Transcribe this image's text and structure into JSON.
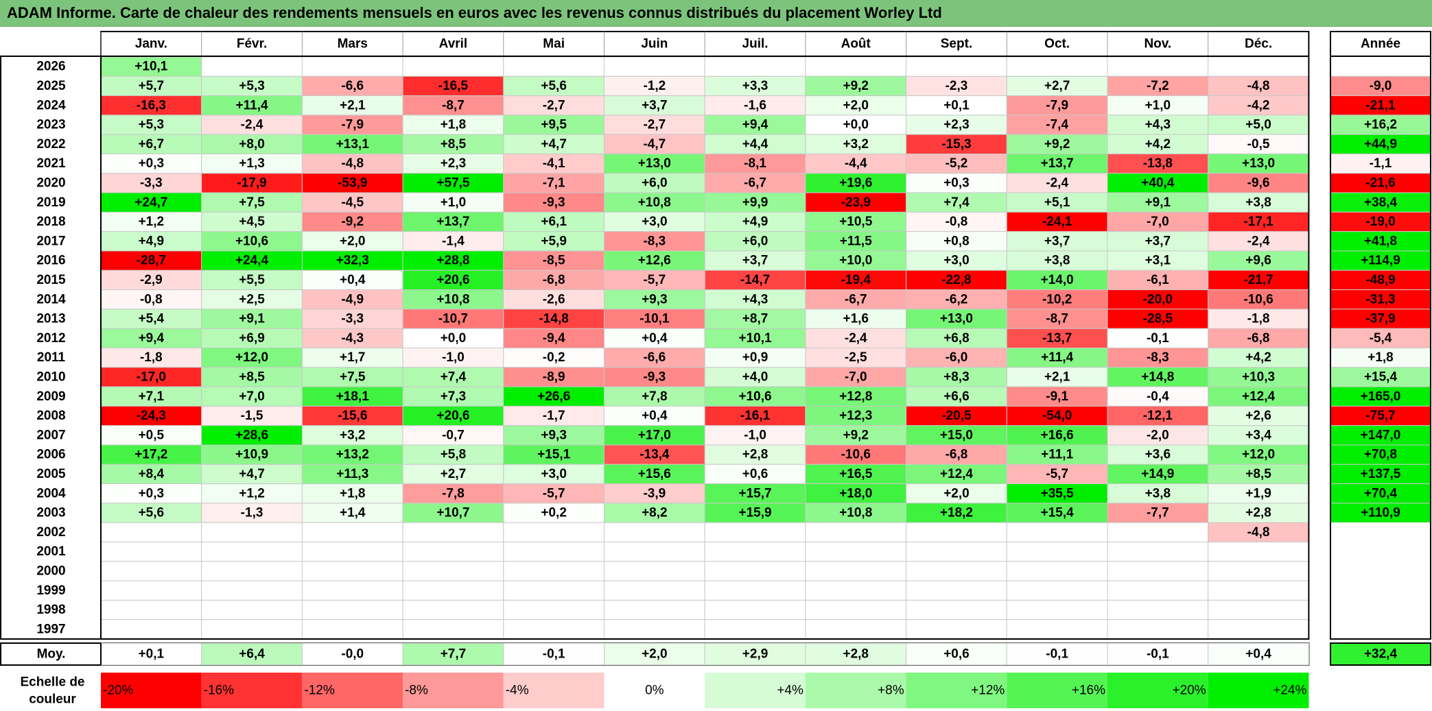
{
  "title": "ADAM Informe. Carte de chaleur des rendements mensuels en euros avec les revenus connus distribués du placement Worley Ltd",
  "chart_data": {
    "type": "heatmap",
    "title": "ADAM Informe. Carte de chaleur des rendements mensuels en euros avec les revenus connus distribués du placement Worley Ltd",
    "months": [
      "Janv.",
      "Févr.",
      "Mars",
      "Avril",
      "Mai",
      "Juin",
      "Juil.",
      "Août",
      "Sept.",
      "Oct.",
      "Nov.",
      "Déc."
    ],
    "year_header": "Année",
    "rows": [
      {
        "year": "2026",
        "months": [
          "+10,1",
          "",
          "",
          "",
          "",
          "",
          "",
          "",
          "",
          "",
          "",
          ""
        ],
        "annual": ""
      },
      {
        "year": "2025",
        "months": [
          "+5,7",
          "+5,3",
          "-6,6",
          "-16,5",
          "+5,6",
          "-1,2",
          "+3,3",
          "+9,2",
          "-2,3",
          "+2,7",
          "-7,2",
          "-4,8"
        ],
        "annual": "-9,0"
      },
      {
        "year": "2024",
        "months": [
          "-16,3",
          "+11,4",
          "+2,1",
          "-8,7",
          "-2,7",
          "+3,7",
          "-1,6",
          "+2,0",
          "+0,1",
          "-7,9",
          "+1,0",
          "-4,2"
        ],
        "annual": "-21,1"
      },
      {
        "year": "2023",
        "months": [
          "+5,3",
          "-2,4",
          "-7,9",
          "+1,8",
          "+9,5",
          "-2,7",
          "+9,4",
          "+0,0",
          "+2,3",
          "-7,4",
          "+4,3",
          "+5,0"
        ],
        "annual": "+16,2"
      },
      {
        "year": "2022",
        "months": [
          "+6,7",
          "+8,0",
          "+13,1",
          "+8,5",
          "+4,7",
          "-4,7",
          "+4,4",
          "+3,2",
          "-15,3",
          "+9,2",
          "+4,2",
          "-0,5"
        ],
        "annual": "+44,9"
      },
      {
        "year": "2021",
        "months": [
          "+0,3",
          "+1,3",
          "-4,8",
          "+2,3",
          "-4,1",
          "+13,0",
          "-8,1",
          "-4,4",
          "-5,2",
          "+13,7",
          "-13,8",
          "+13,0"
        ],
        "annual": "-1,1"
      },
      {
        "year": "2020",
        "months": [
          "-3,3",
          "-17,9",
          "-53,9",
          "+57,5",
          "-7,1",
          "+6,0",
          "-6,7",
          "+19,6",
          "+0,3",
          "-2,4",
          "+40,4",
          "-9,6"
        ],
        "annual": "-21,6"
      },
      {
        "year": "2019",
        "months": [
          "+24,7",
          "+7,5",
          "-4,5",
          "+1,0",
          "-9,3",
          "+10,8",
          "+9,9",
          "-23,9",
          "+7,4",
          "+5,1",
          "+9,1",
          "+3,8"
        ],
        "annual": "+38,4"
      },
      {
        "year": "2018",
        "months": [
          "+1,2",
          "+4,5",
          "-9,2",
          "+13,7",
          "+6,1",
          "+3,0",
          "+4,9",
          "+10,5",
          "-0,8",
          "-24,1",
          "-7,0",
          "-17,1"
        ],
        "annual": "-19,0"
      },
      {
        "year": "2017",
        "months": [
          "+4,9",
          "+10,6",
          "+2,0",
          "-1,4",
          "+5,9",
          "-8,3",
          "+6,0",
          "+11,5",
          "+0,8",
          "+3,7",
          "+3,7",
          "-2,4"
        ],
        "annual": "+41,8"
      },
      {
        "year": "2016",
        "months": [
          "-28,7",
          "+24,4",
          "+32,3",
          "+28,8",
          "-8,5",
          "+12,6",
          "+3,7",
          "+10,0",
          "+3,0",
          "+3,8",
          "+3,1",
          "+9,6"
        ],
        "annual": "+114,9"
      },
      {
        "year": "2015",
        "months": [
          "-2,9",
          "+5,5",
          "+0,4",
          "+20,6",
          "-6,8",
          "-5,7",
          "-14,7",
          "-19,4",
          "-22,8",
          "+14,0",
          "-6,1",
          "-21,7"
        ],
        "annual": "-48,9"
      },
      {
        "year": "2014",
        "months": [
          "-0,8",
          "+2,5",
          "-4,9",
          "+10,8",
          "-2,6",
          "+9,3",
          "+4,3",
          "-6,7",
          "-6,2",
          "-10,2",
          "-20,0",
          "-10,6"
        ],
        "annual": "-31,3"
      },
      {
        "year": "2013",
        "months": [
          "+5,4",
          "+9,1",
          "-3,3",
          "-10,7",
          "-14,8",
          "-10,1",
          "+8,7",
          "+1,6",
          "+13,0",
          "-8,7",
          "-28,5",
          "-1,8"
        ],
        "annual": "-37,9"
      },
      {
        "year": "2012",
        "months": [
          "+9,4",
          "+6,9",
          "-4,3",
          "+0,0",
          "-9,4",
          "+0,4",
          "+10,1",
          "-2,4",
          "+6,8",
          "-13,7",
          "-0,1",
          "-6,8"
        ],
        "annual": "-5,4"
      },
      {
        "year": "2011",
        "months": [
          "-1,8",
          "+12,0",
          "+1,7",
          "-1,0",
          "-0,2",
          "-6,6",
          "+0,9",
          "-2,5",
          "-6,0",
          "+11,4",
          "-8,3",
          "+4,2"
        ],
        "annual": "+1,8"
      },
      {
        "year": "2010",
        "months": [
          "-17,0",
          "+8,5",
          "+7,5",
          "+7,4",
          "-8,9",
          "-9,3",
          "+4,0",
          "-7,0",
          "+8,3",
          "+2,1",
          "+14,8",
          "+10,3"
        ],
        "annual": "+15,4"
      },
      {
        "year": "2009",
        "months": [
          "+7,1",
          "+7,0",
          "+18,1",
          "+7,3",
          "+26,6",
          "+7,8",
          "+10,6",
          "+12,8",
          "+6,6",
          "-9,1",
          "-0,4",
          "+12,4"
        ],
        "annual": "+165,0"
      },
      {
        "year": "2008",
        "months": [
          "-24,3",
          "-1,5",
          "-15,6",
          "+20,6",
          "-1,7",
          "+0,4",
          "-16,1",
          "+12,3",
          "-20,5",
          "-54,0",
          "-12,1",
          "+2,6"
        ],
        "annual": "-75,7"
      },
      {
        "year": "2007",
        "months": [
          "+0,5",
          "+28,6",
          "+3,2",
          "-0,7",
          "+9,3",
          "+17,0",
          "-1,0",
          "+9,2",
          "+15,0",
          "+16,6",
          "-2,0",
          "+3,4"
        ],
        "annual": "+147,0"
      },
      {
        "year": "2006",
        "months": [
          "+17,2",
          "+10,9",
          "+13,2",
          "+5,8",
          "+15,1",
          "-13,4",
          "+2,8",
          "-10,6",
          "-6,8",
          "+11,1",
          "+3,6",
          "+12,0"
        ],
        "annual": "+70,8"
      },
      {
        "year": "2005",
        "months": [
          "+8,4",
          "+4,7",
          "+11,3",
          "+2,7",
          "+3,0",
          "+15,6",
          "+0,6",
          "+16,5",
          "+12,4",
          "-5,7",
          "+14,9",
          "+8,5"
        ],
        "annual": "+137,5"
      },
      {
        "year": "2004",
        "months": [
          "+0,3",
          "+1,2",
          "+1,8",
          "-7,8",
          "-5,7",
          "-3,9",
          "+15,7",
          "+18,0",
          "+2,0",
          "+35,5",
          "+3,8",
          "+1,9"
        ],
        "annual": "+70,4"
      },
      {
        "year": "2003",
        "months": [
          "+5,6",
          "-1,3",
          "+1,4",
          "+10,7",
          "+0,2",
          "+8,2",
          "+15,9",
          "+10,8",
          "+18,2",
          "+15,4",
          "-7,7",
          "+2,8"
        ],
        "annual": "+110,9"
      },
      {
        "year": "2002",
        "months": [
          "",
          "",
          "",
          "",
          "",
          "",
          "",
          "",
          "",
          "",
          "",
          "-4,8"
        ],
        "annual": ""
      },
      {
        "year": "2001",
        "months": [
          "",
          "",
          "",
          "",
          "",
          "",
          "",
          "",
          "",
          "",
          "",
          ""
        ],
        "annual": ""
      },
      {
        "year": "2000",
        "months": [
          "",
          "",
          "",
          "",
          "",
          "",
          "",
          "",
          "",
          "",
          "",
          ""
        ],
        "annual": ""
      },
      {
        "year": "1999",
        "months": [
          "",
          "",
          "",
          "",
          "",
          "",
          "",
          "",
          "",
          "",
          "",
          ""
        ],
        "annual": ""
      },
      {
        "year": "1998",
        "months": [
          "",
          "",
          "",
          "",
          "",
          "",
          "",
          "",
          "",
          "",
          "",
          ""
        ],
        "annual": ""
      },
      {
        "year": "1997",
        "months": [
          "",
          "",
          "",
          "",
          "",
          "",
          "",
          "",
          "",
          "",
          "",
          ""
        ],
        "annual": ""
      }
    ],
    "average": {
      "label": "Moy.",
      "months": [
        "+0,1",
        "+6,4",
        "-0,0",
        "+7,7",
        "-0,1",
        "+2,0",
        "+2,9",
        "+2,8",
        "+0,6",
        "-0,1",
        "-0,1",
        "+0,4"
      ],
      "annual": "+32,4"
    },
    "color_scale": {
      "label": "Echelle de couleur",
      "steps": [
        "-20%",
        "-16%",
        "-12%",
        "-8%",
        "-4%",
        "0%",
        "+4%",
        "+8%",
        "+12%",
        "+16%",
        "+20%",
        "+24%"
      ]
    },
    "colors": {
      "negative_max": "#ff0000",
      "neutral": "#ffffff",
      "positive_max": "#00ee00",
      "title_background": "#7cc47c"
    }
  }
}
